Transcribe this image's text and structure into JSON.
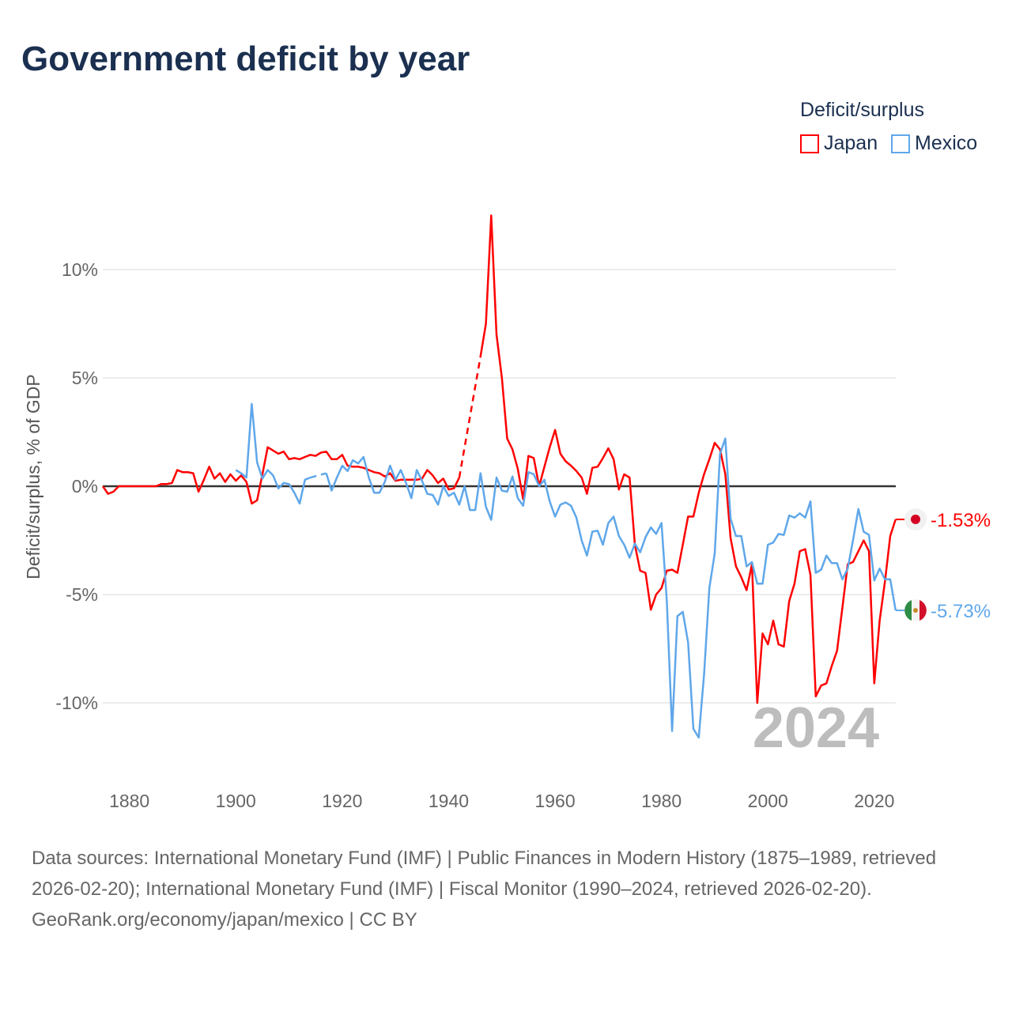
{
  "title": "Government deficit by year",
  "legend": {
    "title": "Deficit/surplus",
    "items": [
      {
        "label": "Japan",
        "color": "#ff0000"
      },
      {
        "label": "Mexico",
        "color": "#5fa7ea"
      }
    ]
  },
  "footer": {
    "sources": "Data sources: International Monetary Fund (IMF) | Public Finances in Modern History (1875–1989, retrieved 2026-02-20); International Monetary Fund (IMF) | Fiscal Monitor (1990–2024, retrieved 2026-02-20).",
    "credit": "GeoRank.org/economy/japan/mexico | CC BY"
  },
  "chart_data": {
    "type": "line",
    "ylabel": "Deficit/surplus, % of GDP",
    "xlim": [
      1875,
      2024
    ],
    "ylim": [
      -12.5,
      13
    ],
    "xticks": [
      1880,
      1900,
      1920,
      1940,
      1960,
      1980,
      2000,
      2020
    ],
    "yticks": [
      {
        "v": 10,
        "label": "10%"
      },
      {
        "v": 5,
        "label": "5%"
      },
      {
        "v": 0,
        "label": "0%"
      },
      {
        "v": -5,
        "label": "-5%"
      },
      {
        "v": -10,
        "label": "-10%"
      }
    ],
    "year_watermark": "2024",
    "series": [
      {
        "name": "Japan",
        "color": "#ff0000",
        "start": 1875,
        "end_label": "-1.53%",
        "values": [
          0,
          -0.35,
          -0.25,
          0,
          0,
          0,
          0,
          0,
          0,
          0,
          0,
          0.1,
          0.1,
          0.15,
          0.75,
          0.65,
          0.65,
          0.6,
          -0.25,
          0.3,
          0.9,
          0.35,
          0.6,
          0.2,
          0.55,
          0.25,
          0.5,
          0.2,
          -0.8,
          -0.65,
          0.55,
          1.8,
          1.65,
          1.5,
          1.6,
          1.25,
          1.3,
          1.25,
          1.35,
          1.45,
          1.4,
          1.55,
          1.6,
          1.25,
          1.25,
          1.45,
          0.95,
          0.9,
          0.9,
          0.85,
          0.75,
          0.65,
          0.6,
          0.45,
          0.6,
          0.25,
          0.3,
          0.3,
          0.3,
          0.3,
          0.35,
          0.75,
          0.5,
          0.15,
          0.35,
          -0.15,
          -0.1,
          0.4,
          null,
          null,
          null,
          6.0,
          7.5,
          12.5,
          7.0,
          5.0,
          2.2,
          1.7,
          0.8,
          -0.6,
          1.4,
          1.3,
          0,
          0.9,
          1.8,
          2.6,
          1.5,
          1.15,
          0.95,
          0.7,
          0.4,
          -0.35,
          0.85,
          0.9,
          1.3,
          1.75,
          1.25,
          -0.15,
          0.55,
          0.4,
          -2.7,
          -3.9,
          -4.0,
          -5.7,
          -5.0,
          -4.7,
          -3.9,
          -3.85,
          -4.0,
          -2.7,
          -1.4,
          -1.4,
          -0.3,
          0.55,
          1.25,
          2.0,
          1.7,
          0.55,
          -2.4,
          -3.7,
          -4.2,
          -4.8,
          -3.6,
          -10.0,
          -6.8,
          -7.3,
          -6.2,
          -7.3,
          -7.4,
          -5.3,
          -4.5,
          -3.0,
          -2.9,
          -4.1,
          -9.7,
          -9.2,
          -9.1,
          -8.3,
          -7.6,
          -5.6,
          -3.6,
          -3.5,
          -3.0,
          -2.5,
          -3.0,
          -9.1,
          -6.2,
          -4.4,
          -2.3,
          -1.53
        ]
      },
      {
        "name": "Mexico",
        "color": "#5fa7ea",
        "start": 1900,
        "end_label": "-5.73%",
        "values": [
          0.75,
          0.6,
          0.4,
          3.8,
          1.1,
          0.35,
          0.75,
          0.5,
          -0.1,
          0.15,
          0.1,
          -0.3,
          -0.8,
          0.3,
          0.4,
          null,
          null,
          0.6,
          -0.2,
          0.4,
          0.95,
          0.7,
          1.2,
          1.05,
          1.35,
          0.4,
          -0.3,
          -0.3,
          0.2,
          0.95,
          0.3,
          0.75,
          0.15,
          -0.55,
          0.75,
          0.25,
          -0.35,
          -0.4,
          -0.85,
          0,
          -0.45,
          -0.3,
          -0.85,
          0,
          -1.1,
          -1.1,
          0.6,
          -0.95,
          -1.55,
          0.4,
          -0.2,
          -0.25,
          0.45,
          -0.55,
          -0.9,
          0.65,
          0.55,
          0,
          0.3,
          -0.7,
          -1.4,
          -0.85,
          -0.75,
          -0.9,
          -1.45,
          -2.5,
          -3.2,
          -2.1,
          -2.05,
          -2.7,
          -1.7,
          -1.4,
          -2.3,
          -2.7,
          -3.3,
          -2.65,
          -3.05,
          -2.35,
          -1.9,
          -2.2,
          -1.7,
          -5.3,
          -11.3,
          -6.0,
          -5.8,
          -7.2,
          -11.2,
          -11.6,
          -8.7,
          -4.7,
          -3.1,
          1.5,
          2.2,
          -1.5,
          -2.3,
          -2.3,
          -3.7,
          -3.5,
          -4.5,
          -4.5,
          -2.7,
          -2.6,
          -2.2,
          -2.25,
          -1.35,
          -1.45,
          -1.25,
          -1.45,
          -0.7,
          -4.0,
          -3.85,
          -3.2,
          -3.55,
          -3.55,
          -4.3,
          -3.8,
          -2.5,
          -1.05,
          -2.1,
          -2.25,
          -4.35,
          -3.8,
          -4.3,
          -4.3,
          -5.73
        ]
      }
    ]
  }
}
